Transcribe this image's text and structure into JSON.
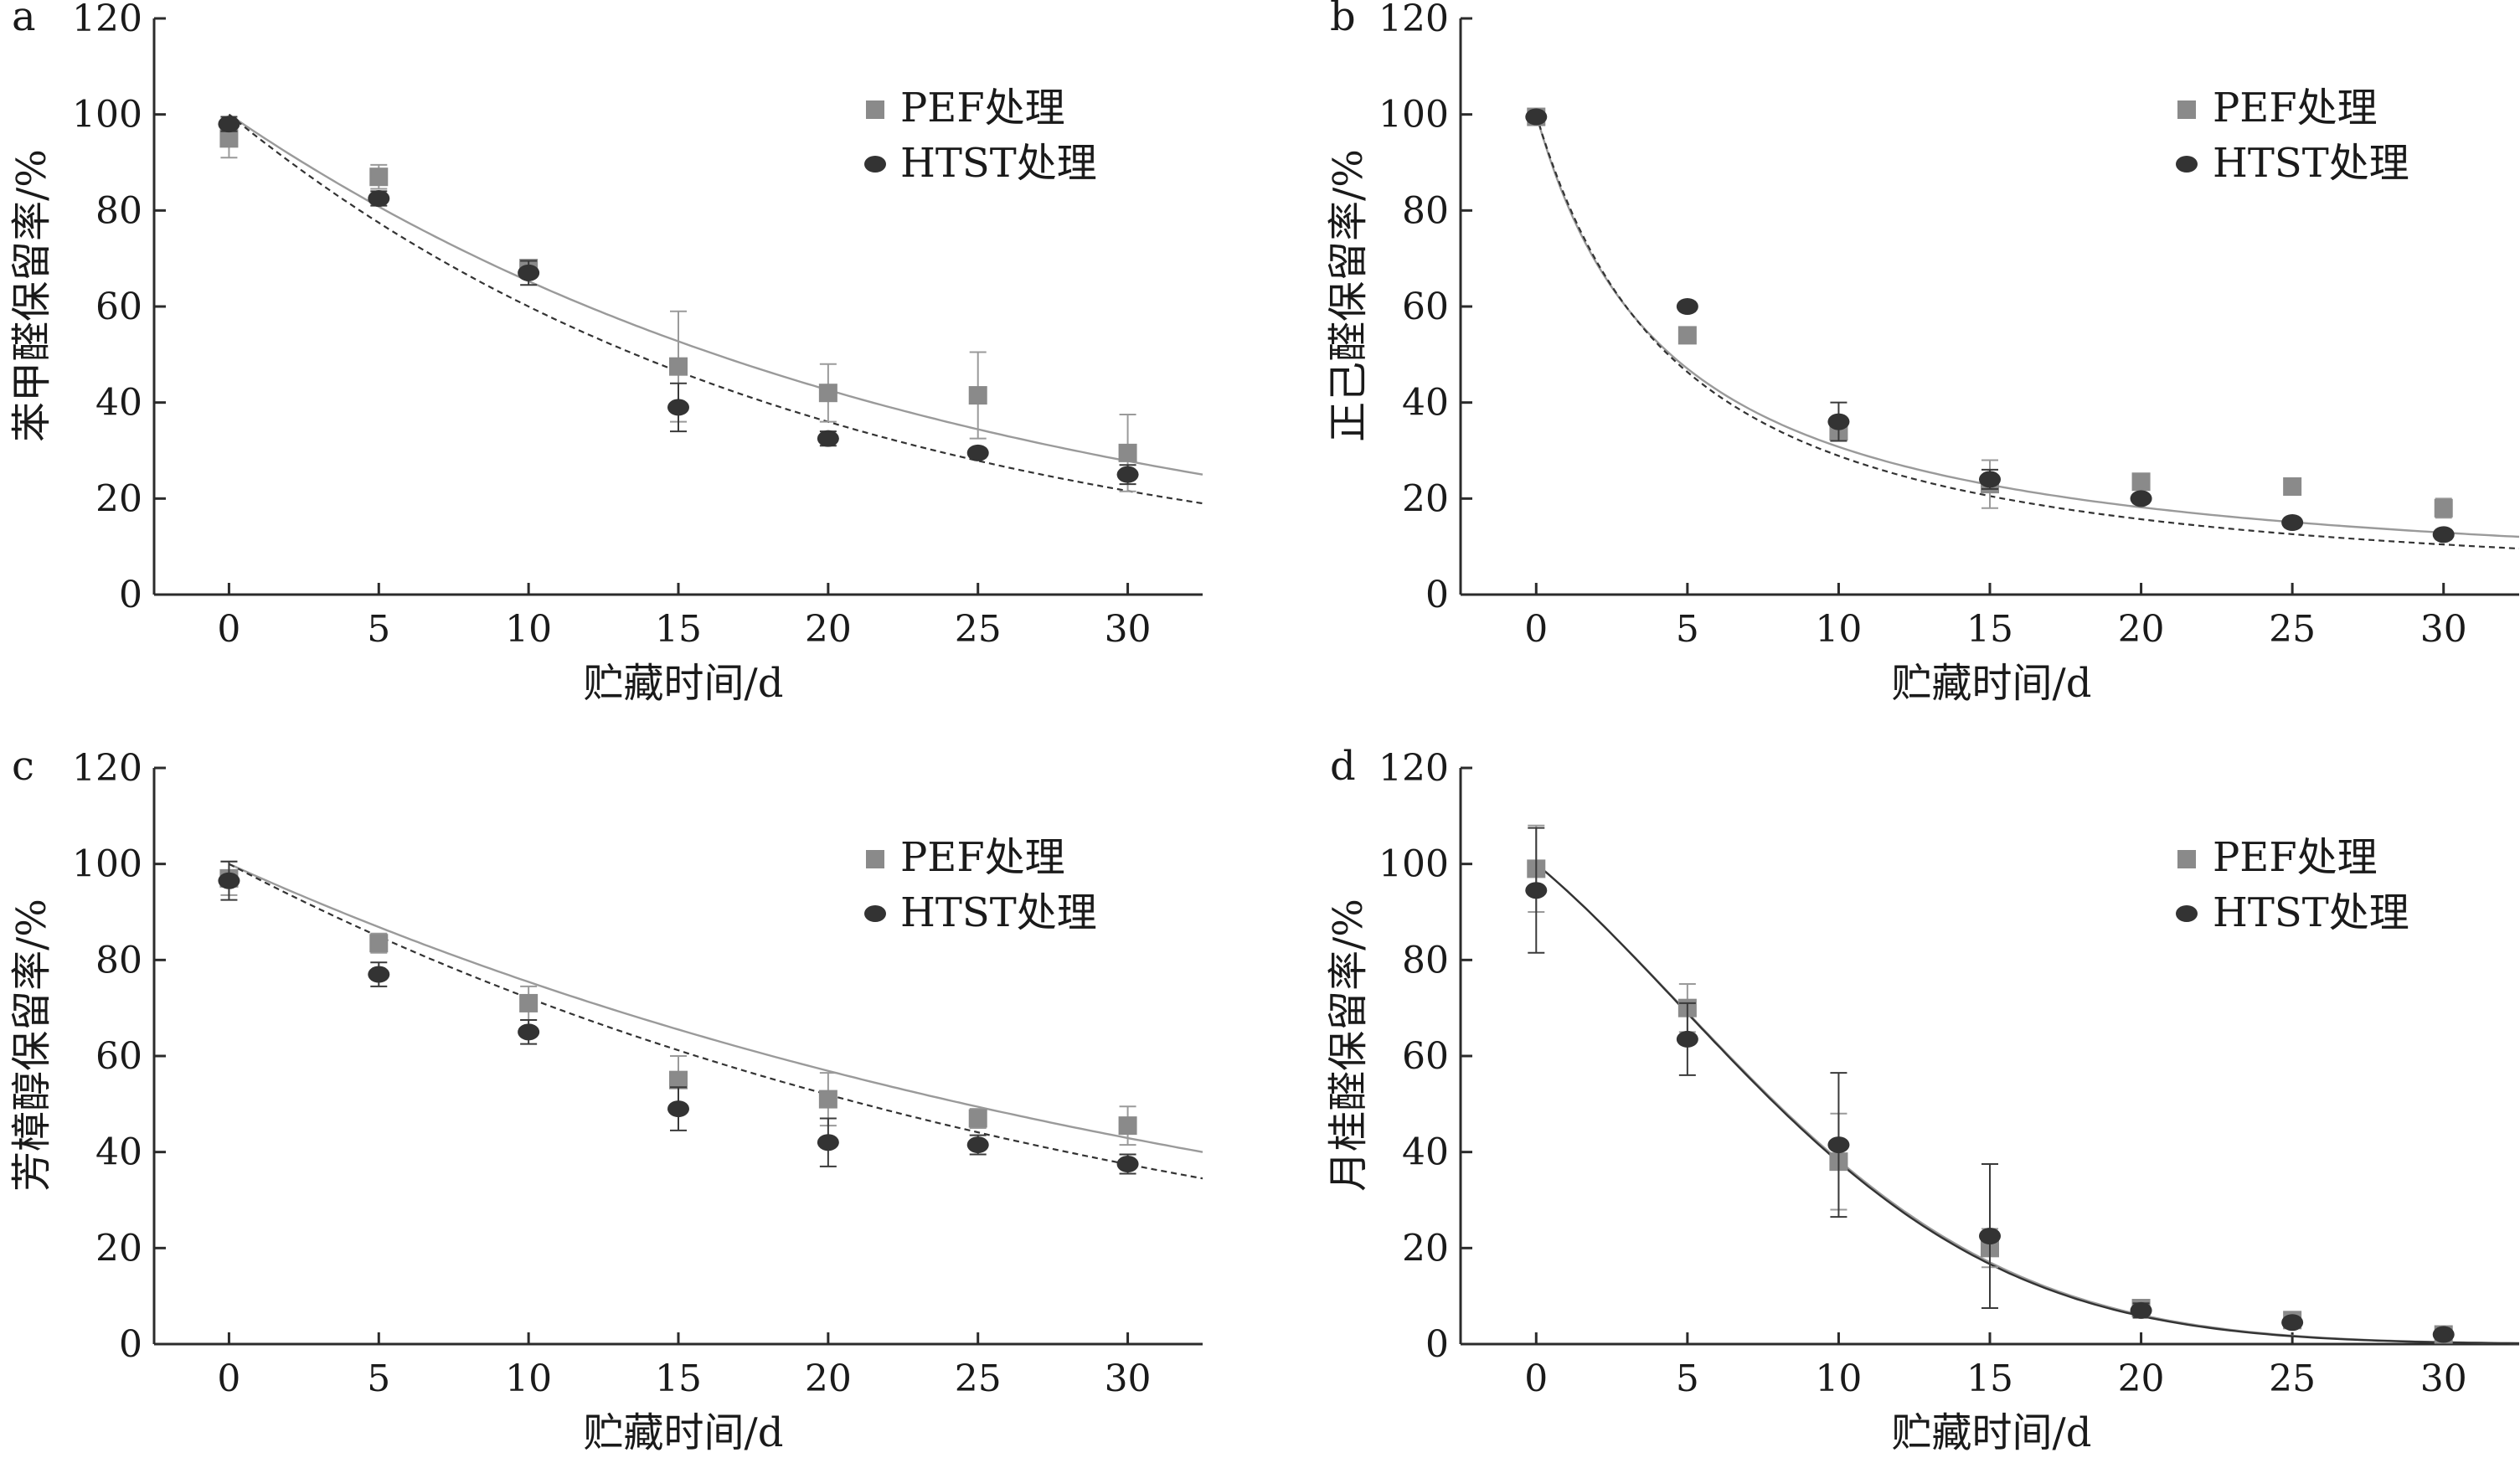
{
  "chart_data": [
    {
      "type": "scatter",
      "panel": "a",
      "xlabel": "贮藏时间/d",
      "ylabel": "苯甲醛保留率/%",
      "xlim": [
        -2.5,
        32.5
      ],
      "ylim": [
        0,
        120
      ],
      "xticks": [
        0,
        5,
        10,
        15,
        20,
        25,
        30
      ],
      "yticks": [
        0,
        20,
        40,
        60,
        80,
        100,
        120
      ],
      "legend": [
        "PEF处理",
        "HTST处理"
      ],
      "series": [
        {
          "name": "PEF处理",
          "marker": "square",
          "color": "#8a8a8a",
          "x": [
            0,
            5,
            10,
            15,
            20,
            25,
            30
          ],
          "y": [
            95,
            87,
            68,
            47.5,
            42,
            41.5,
            29.5
          ],
          "err": [
            4,
            2.5,
            1.5,
            11.5,
            6,
            9,
            8
          ],
          "fit": {
            "model": "exp",
            "y0": 100,
            "x_end": 32.5,
            "y_end": 25,
            "style": "solid"
          }
        },
        {
          "name": "HTST处理",
          "marker": "ellipse",
          "color": "#333333",
          "x": [
            0,
            5,
            10,
            15,
            20,
            25,
            30
          ],
          "y": [
            98,
            82.5,
            67,
            39,
            32.5,
            29.5,
            25
          ],
          "err": [
            1.5,
            1.5,
            2.5,
            5,
            1.5,
            1,
            2
          ],
          "fit": {
            "model": "exp",
            "y0": 100,
            "x_end": 32.5,
            "y_end": 19,
            "style": "dashed"
          }
        }
      ]
    },
    {
      "type": "scatter",
      "panel": "b",
      "xlabel": "贮藏时间/d",
      "ylabel": "正己醛保留率/%",
      "xlim": [
        -2.5,
        32.5
      ],
      "ylim": [
        0,
        120
      ],
      "xticks": [
        0,
        5,
        10,
        15,
        20,
        25,
        30
      ],
      "yticks": [
        0,
        20,
        40,
        60,
        80,
        100,
        120
      ],
      "legend": [
        "PEF处理",
        "HTST处理"
      ],
      "series": [
        {
          "name": "PEF处理",
          "marker": "square",
          "color": "#8a8a8a",
          "x": [
            0,
            5,
            10,
            15,
            20,
            25,
            30
          ],
          "y": [
            99.5,
            54,
            34,
            23,
            23.5,
            22.5,
            18
          ],
          "err": [
            1,
            1,
            2,
            5,
            1,
            1,
            2
          ],
          "fit": {
            "model": "hyper",
            "y0": 100,
            "k": 0.225,
            "x_end": 32.5,
            "style": "solid"
          }
        },
        {
          "name": "HTST处理",
          "marker": "ellipse",
          "color": "#333333",
          "x": [
            0,
            5,
            10,
            15,
            20,
            25,
            30
          ],
          "y": [
            99.5,
            60,
            36,
            24,
            20,
            15,
            12.5
          ],
          "err": [
            1,
            1,
            4,
            2,
            1,
            1,
            1
          ],
          "fit": {
            "model": "hyper2",
            "y0": 100,
            "k": 0.17,
            "x_end": 32.5,
            "style": "dashed"
          }
        }
      ]
    },
    {
      "type": "scatter",
      "panel": "c",
      "xlabel": "贮藏时间/d",
      "ylabel": "芳樟醇保留率/%",
      "xlim": [
        -2.5,
        32.5
      ],
      "ylim": [
        0,
        120
      ],
      "xticks": [
        0,
        5,
        10,
        15,
        20,
        25,
        30
      ],
      "yticks": [
        0,
        20,
        40,
        60,
        80,
        100,
        120
      ],
      "legend": [
        "PEF处理",
        "HTST处理"
      ],
      "series": [
        {
          "name": "PEF处理",
          "marker": "square",
          "color": "#8a8a8a",
          "x": [
            0,
            5,
            10,
            15,
            20,
            25,
            30
          ],
          "y": [
            97,
            83.5,
            71,
            55,
            51,
            47,
            45.5
          ],
          "err": [
            3.5,
            2,
            3.5,
            5,
            5.5,
            2,
            4
          ],
          "fit": {
            "model": "exp",
            "y0": 100,
            "x_end": 32.5,
            "y_end": 40,
            "style": "solid"
          }
        },
        {
          "name": "HTST处理",
          "marker": "ellipse",
          "color": "#333333",
          "x": [
            0,
            5,
            10,
            15,
            20,
            25,
            30
          ],
          "y": [
            96.5,
            77,
            65,
            49,
            42,
            41.5,
            37.5
          ],
          "err": [
            4,
            2.5,
            2.5,
            4.5,
            5,
            2,
            2
          ],
          "fit": {
            "model": "exp",
            "y0": 100,
            "x_end": 32.5,
            "y_end": 34.5,
            "style": "dashed"
          }
        }
      ]
    },
    {
      "type": "scatter",
      "panel": "d",
      "xlabel": "贮藏时间/d",
      "ylabel": "月桂醛保留率/%",
      "xlim": [
        -2.5,
        32.5
      ],
      "ylim": [
        0,
        120
      ],
      "xticks": [
        0,
        5,
        10,
        15,
        20,
        25,
        30
      ],
      "yticks": [
        0,
        20,
        40,
        60,
        80,
        100,
        120
      ],
      "legend": [
        "PEF处理",
        "HTST处理"
      ],
      "series": [
        {
          "name": "PEF处理",
          "marker": "square",
          "color": "#8a8a8a",
          "x": [
            0,
            5,
            10,
            15,
            20,
            25,
            30
          ],
          "y": [
            99,
            70,
            38,
            20,
            7.5,
            5,
            2
          ],
          "err": [
            9,
            5,
            10,
            4,
            1.5,
            1,
            1
          ],
          "fit": {
            "model": "sigmoid",
            "y0": 100,
            "a": 0.0044,
            "b": 0.002,
            "x_end": 32.5,
            "style": "solid"
          }
        },
        {
          "name": "HTST处理",
          "marker": "ellipse",
          "color": "#333333",
          "x": [
            0,
            5,
            10,
            15,
            20,
            25,
            30
          ],
          "y": [
            94.5,
            63.5,
            41.5,
            22.5,
            7,
            4.5,
            2
          ],
          "err": [
            13,
            7.5,
            15,
            15,
            1.5,
            1,
            1
          ],
          "fit": {
            "model": "sigmoid",
            "y0": 100,
            "a": 0.0045,
            "b": 0.0022,
            "x_end": 32.5,
            "style": "solid-dark"
          }
        }
      ]
    }
  ]
}
